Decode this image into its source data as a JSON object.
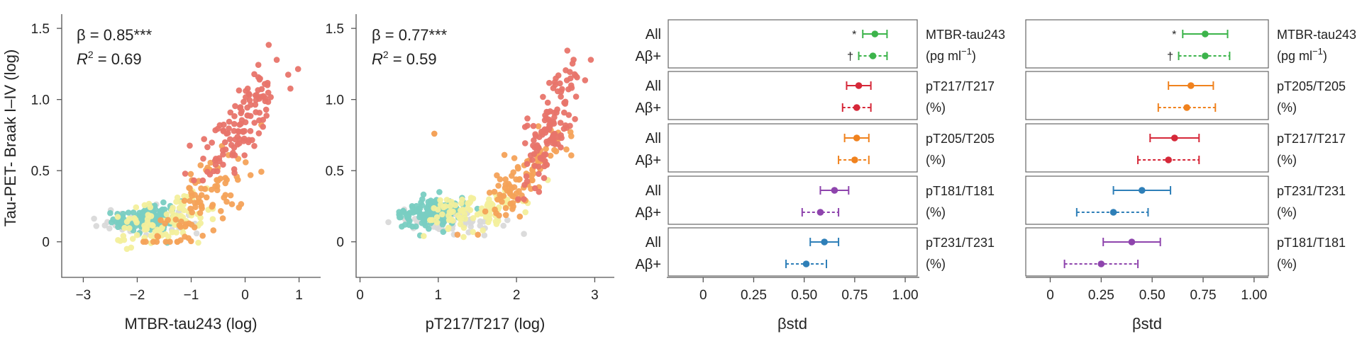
{
  "chart_data": [
    {
      "type": "scatter",
      "id": "scatter_mtbr",
      "xlabel": "MTBR-tau243 (log)",
      "ylabel": "Tau-PET- Braak I–IV (log)",
      "xlim": [
        -3.4,
        1.4
      ],
      "ylim": [
        -0.25,
        1.6
      ],
      "xticks": [
        -3,
        -2,
        -1,
        0,
        1
      ],
      "xtick_labels": [
        "−3",
        "−2",
        "−1",
        "0",
        "1"
      ],
      "yticks": [
        0,
        0.5,
        1.0,
        1.5
      ],
      "ytick_labels": [
        "0",
        "0.5",
        "1.0",
        "1.5"
      ],
      "beta_text": "β = 0.85***",
      "r2_main": "R",
      "r2_sup": "2",
      "r2_value": " = 0.69",
      "seed": 17,
      "groups": [
        {
          "color": "#e8746a",
          "n": 120,
          "xmean": -0.15,
          "xsd": 0.45,
          "slope": 0.45,
          "intercept": 0.88,
          "ysd": 0.14,
          "xmin": -2.2,
          "xmax": 1.1,
          "ymin": 0.35,
          "ymax": 1.45
        },
        {
          "color": "#f4a259",
          "n": 90,
          "xmean": -0.85,
          "xsd": 0.45,
          "slope": 0.35,
          "intercept": 0.55,
          "ysd": 0.12,
          "xmin": -2.2,
          "xmax": 0.3,
          "ymin": 0.0,
          "ymax": 0.95
        },
        {
          "color": "#f3ef9c",
          "n": 90,
          "xmean": -1.5,
          "xsd": 0.45,
          "slope": 0.08,
          "intercept": 0.27,
          "ysd": 0.07,
          "xmin": -2.6,
          "xmax": -0.6,
          "ymin": -0.05,
          "ymax": 0.5
        },
        {
          "color": "#79cdc2",
          "n": 150,
          "xmean": -1.8,
          "xsd": 0.32,
          "slope": 0.03,
          "intercept": 0.21,
          "ysd": 0.055,
          "xmin": -2.5,
          "xmax": -1.0,
          "ymin": -0.08,
          "ymax": 0.4
        },
        {
          "color": "#d9d9d9",
          "n": 45,
          "xmean": -1.9,
          "xsd": 0.45,
          "slope": 0.0,
          "intercept": 0.14,
          "ysd": 0.06,
          "xmin": -2.8,
          "xmax": -0.9,
          "ymin": -0.12,
          "ymax": 0.35
        }
      ]
    },
    {
      "type": "scatter",
      "id": "scatter_pt217",
      "xlabel": "pT217/T217 (log)",
      "ylabel": "",
      "xlim": [
        -0.05,
        3.25
      ],
      "ylim": [
        -0.25,
        1.6
      ],
      "xticks": [
        0,
        1,
        2,
        3
      ],
      "xtick_labels": [
        "0",
        "1",
        "2",
        "3"
      ],
      "yticks": [
        0,
        0.5,
        1.0,
        1.5
      ],
      "ytick_labels": [
        "0",
        "0.5",
        "1.0",
        "1.5"
      ],
      "beta_text": "β = 0.77***",
      "r2_main": "R",
      "r2_sup": "2",
      "r2_value": " = 0.59",
      "seed": 43,
      "groups": [
        {
          "color": "#e8746a",
          "n": 120,
          "xmean": 2.45,
          "xsd": 0.18,
          "slope": 0.9,
          "intercept": -1.4,
          "ysd": 0.16,
          "xmin": 1.9,
          "xmax": 2.95,
          "ymin": 0.3,
          "ymax": 1.45
        },
        {
          "color": "#f4a259",
          "n": 90,
          "xmean": 2.0,
          "xsd": 0.28,
          "slope": 0.45,
          "intercept": -0.5,
          "ysd": 0.1,
          "xmin": 1.2,
          "xmax": 2.7,
          "ymin": 0.05,
          "ymax": 0.9
        },
        {
          "color": "#f3ef9c",
          "n": 90,
          "xmean": 1.5,
          "xsd": 0.3,
          "slope": 0.1,
          "intercept": 0.06,
          "ysd": 0.07,
          "xmin": 0.7,
          "xmax": 2.4,
          "ymin": -0.05,
          "ymax": 0.45
        },
        {
          "color": "#79cdc2",
          "n": 150,
          "xmean": 0.9,
          "xsd": 0.18,
          "slope": 0.05,
          "intercept": 0.15,
          "ysd": 0.05,
          "xmin": 0.5,
          "xmax": 1.5,
          "ymin": -0.06,
          "ymax": 0.35
        },
        {
          "color": "#d9d9d9",
          "n": 45,
          "xmean": 1.2,
          "xsd": 0.4,
          "slope": 0.0,
          "intercept": 0.13,
          "ysd": 0.06,
          "xmin": 0.25,
          "xmax": 2.1,
          "ymin": -0.1,
          "ymax": 0.3
        }
      ],
      "extra_points": [
        {
          "x": 0.95,
          "y": 0.76,
          "color": "#f4a259"
        }
      ]
    },
    {
      "type": "forest",
      "id": "forest_left",
      "xlabel": "βstd",
      "xlim": [
        -0.18,
        1.07
      ],
      "xticks": [
        0,
        0.25,
        0.5,
        0.75,
        1.0
      ],
      "xtick_labels": [
        "0",
        "0.25",
        "0.50",
        "0.75",
        "1.00"
      ],
      "row_labels": [
        "All",
        "Aβ+"
      ],
      "panels": [
        {
          "label": "MTBR-tau243",
          "unit_main": "(pg ml",
          "unit_sup": "−1",
          "unit_end": ")",
          "color": "#3cb44b",
          "rows": [
            {
              "est": 0.85,
              "lo": 0.79,
              "hi": 0.91,
              "sig": "*"
            },
            {
              "est": 0.84,
              "lo": 0.77,
              "hi": 0.91,
              "sig": "†"
            }
          ]
        },
        {
          "label": "pT217/T217",
          "unit_main": "(%)",
          "unit_sup": "",
          "unit_end": "",
          "color": "#d62839",
          "rows": [
            {
              "est": 0.77,
              "lo": 0.71,
              "hi": 0.83,
              "sig": ""
            },
            {
              "est": 0.76,
              "lo": 0.69,
              "hi": 0.83,
              "sig": ""
            }
          ]
        },
        {
          "label": "pT205/T205",
          "unit_main": "(%)",
          "unit_sup": "",
          "unit_end": "",
          "color": "#f0821e",
          "rows": [
            {
              "est": 0.76,
              "lo": 0.7,
              "hi": 0.82,
              "sig": ""
            },
            {
              "est": 0.75,
              "lo": 0.67,
              "hi": 0.82,
              "sig": ""
            }
          ]
        },
        {
          "label": "pT181/T181",
          "unit_main": "(%)",
          "unit_sup": "",
          "unit_end": "",
          "color": "#8e44ad",
          "rows": [
            {
              "est": 0.65,
              "lo": 0.58,
              "hi": 0.72,
              "sig": ""
            },
            {
              "est": 0.58,
              "lo": 0.49,
              "hi": 0.67,
              "sig": ""
            }
          ]
        },
        {
          "label": "pT231/T231",
          "unit_main": "(%)",
          "unit_sup": "",
          "unit_end": "",
          "color": "#2e7fb8",
          "rows": [
            {
              "est": 0.6,
              "lo": 0.53,
              "hi": 0.67,
              "sig": ""
            },
            {
              "est": 0.51,
              "lo": 0.41,
              "hi": 0.61,
              "sig": ""
            }
          ]
        }
      ]
    },
    {
      "type": "forest",
      "id": "forest_right",
      "xlabel": "βstd",
      "xlim": [
        -0.12,
        1.07
      ],
      "xticks": [
        0,
        0.25,
        0.5,
        0.75,
        1.0
      ],
      "xtick_labels": [
        "0",
        "0.25",
        "0.50",
        "0.75",
        "1.00"
      ],
      "row_labels": [
        "",
        ""
      ],
      "panels": [
        {
          "label": "MTBR-tau243",
          "unit_main": "(pg ml",
          "unit_sup": "−1",
          "unit_end": ")",
          "color": "#3cb44b",
          "rows": [
            {
              "est": 0.76,
              "lo": 0.65,
              "hi": 0.87,
              "sig": "*"
            },
            {
              "est": 0.76,
              "lo": 0.63,
              "hi": 0.88,
              "sig": "†"
            }
          ]
        },
        {
          "label": "pT205/T205",
          "unit_main": "(%)",
          "unit_sup": "",
          "unit_end": "",
          "color": "#f0821e",
          "rows": [
            {
              "est": 0.69,
              "lo": 0.58,
              "hi": 0.8,
              "sig": ""
            },
            {
              "est": 0.67,
              "lo": 0.53,
              "hi": 0.81,
              "sig": ""
            }
          ]
        },
        {
          "label": "pT217/T217",
          "unit_main": "(%)",
          "unit_sup": "",
          "unit_end": "",
          "color": "#d62839",
          "rows": [
            {
              "est": 0.61,
              "lo": 0.49,
              "hi": 0.73,
              "sig": ""
            },
            {
              "est": 0.58,
              "lo": 0.43,
              "hi": 0.73,
              "sig": ""
            }
          ]
        },
        {
          "label": "pT231/T231",
          "unit_main": "(%)",
          "unit_sup": "",
          "unit_end": "",
          "color": "#2e7fb8",
          "rows": [
            {
              "est": 0.45,
              "lo": 0.31,
              "hi": 0.59,
              "sig": ""
            },
            {
              "est": 0.31,
              "lo": 0.13,
              "hi": 0.48,
              "sig": ""
            }
          ]
        },
        {
          "label": "pT181/T181",
          "unit_main": "(%)",
          "unit_sup": "",
          "unit_end": "",
          "color": "#8e44ad",
          "rows": [
            {
              "est": 0.4,
              "lo": 0.26,
              "hi": 0.54,
              "sig": ""
            },
            {
              "est": 0.25,
              "lo": 0.07,
              "hi": 0.43,
              "sig": ""
            }
          ]
        }
      ]
    }
  ]
}
